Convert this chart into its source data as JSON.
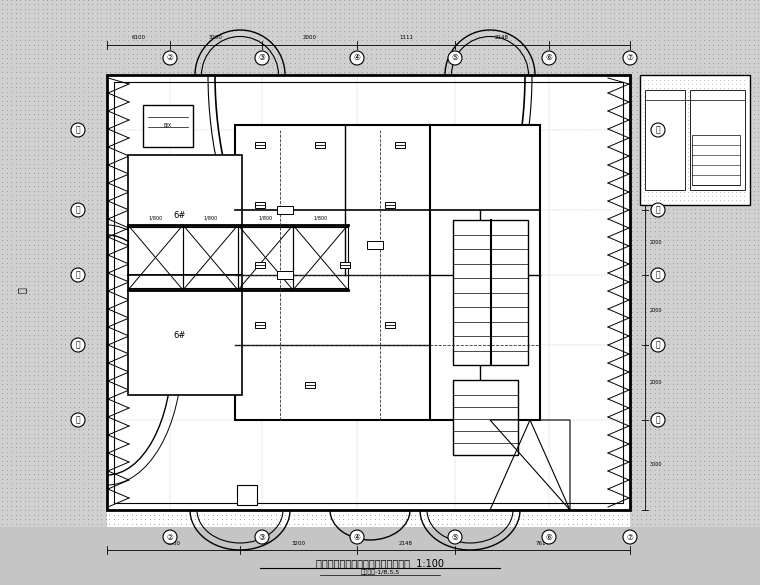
{
  "title": "一层消防应急照明和疏散指示平面图  1:100",
  "subtitle": "某某项目-1/B,5,5",
  "bg_color": "#ffffff",
  "line_color": "#000000",
  "gray_bg": "#c8c8c8",
  "light_gray": "#e0e0e0",
  "stipple_color": "#888888",
  "dark_gray": "#555555"
}
